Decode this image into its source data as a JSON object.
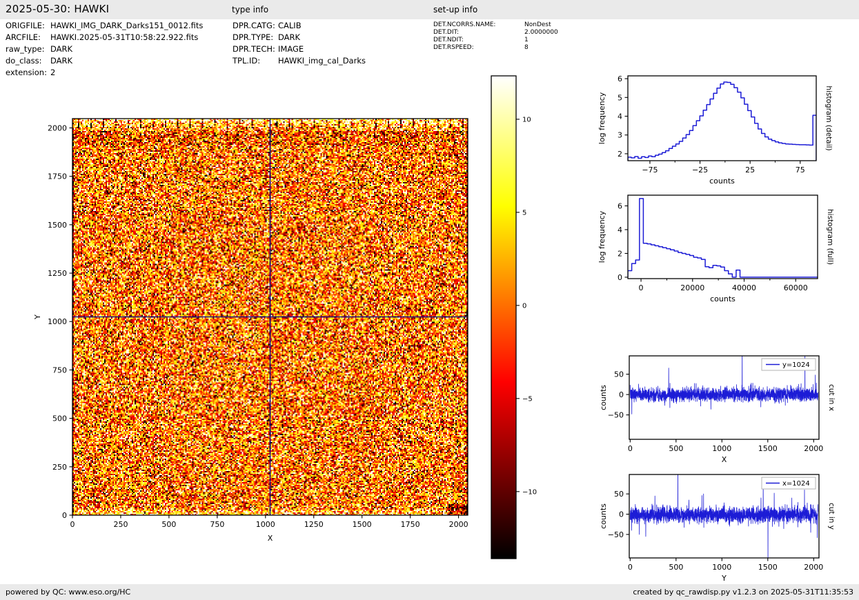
{
  "header": {
    "title": "2025-05-30: HAWKI",
    "type_info_heading": "type info",
    "setup_info_heading": "set-up info"
  },
  "file_info": [
    {
      "label": "ORIGFILE:",
      "value": "HAWKI_IMG_DARK_Darks151_0012.fits"
    },
    {
      "label": "ARCFILE:",
      "value": "HAWKI.2025-05-31T10:58:22.922.fits"
    },
    {
      "label": "raw_type:",
      "value": "DARK"
    },
    {
      "label": "do_class:",
      "value": "DARK"
    },
    {
      "label": "extension:",
      "value": "2"
    }
  ],
  "type_info": [
    {
      "label": "DPR.CATG:",
      "value": "CALIB"
    },
    {
      "label": "DPR.TYPE:",
      "value": "DARK"
    },
    {
      "label": "DPR.TECH:",
      "value": "IMAGE"
    },
    {
      "label": "TPL.ID:",
      "value": "HAWKI_img_cal_Darks"
    }
  ],
  "setup_info": [
    {
      "label": "DET.NCORRS.NAME:",
      "value": "NonDest"
    },
    {
      "label": "DET.DIT:",
      "value": "2.0000000"
    },
    {
      "label": "DET.NDIT:",
      "value": "1"
    },
    {
      "label": "DET.RSPEED:",
      "value": "8"
    }
  ],
  "footer": {
    "left": "powered by QC: www.eso.org/HC",
    "right": "created by qc_rawdisp.py v1.2.3 on 2025-05-31T11:35:53"
  },
  "colors": {
    "line_blue": "#1c1cd6",
    "cut_marker": "#00008b",
    "bar_bg": "#eaeaea",
    "axis": "#000000",
    "legend_border": "#b3b3b3"
  },
  "chart_data": [
    {
      "id": "main_image",
      "type": "heatmap",
      "xlabel": "X",
      "ylabel": "Y",
      "xlim": [
        0,
        2048
      ],
      "ylim": [
        0,
        2048
      ],
      "xticks": [
        [
          0,
          "0"
        ],
        [
          250,
          "250"
        ],
        [
          500,
          "500"
        ],
        [
          750,
          "750"
        ],
        [
          1000,
          "1000"
        ],
        [
          1250,
          "1250"
        ],
        [
          1500,
          "1500"
        ],
        [
          1750,
          "1750"
        ],
        [
          2000,
          "2000"
        ]
      ],
      "yticks": [
        [
          0,
          "0"
        ],
        [
          250,
          "250"
        ],
        [
          500,
          "500"
        ],
        [
          750,
          "750"
        ],
        [
          1000,
          "1000"
        ],
        [
          1250,
          "1250"
        ],
        [
          1500,
          "1500"
        ],
        [
          1750,
          "1750"
        ],
        [
          2000,
          "2000"
        ]
      ],
      "colormap": "hot",
      "value_range": [
        -13.6,
        12.33
      ],
      "colorbar_ticks": [
        [
          10,
          "10"
        ],
        [
          5,
          "5"
        ],
        [
          0,
          "0"
        ],
        [
          -5,
          "−5"
        ],
        [
          -10,
          "−10"
        ]
      ],
      "noise": {
        "mean": 0.5,
        "sigma": 7,
        "seed": 101
      },
      "features": {
        "cut_line_x": 1024,
        "cut_line_y": 1024,
        "comb_marks": 32,
        "top_bright_band": "saturated bright rows at top edge with 32 dark channel tick marks",
        "bottom_bright_rows": "slightly elevated counts along bottom edge",
        "quadrant_seam_x": 1024
      }
    },
    {
      "id": "histogram_detail",
      "type": "step",
      "right_label": "histogram (detail)",
      "xlabel": "counts",
      "ylabel": "log frequency",
      "xlim": [
        -97,
        91
      ],
      "ylim": [
        1.63,
        6.15
      ],
      "xticks": [
        [
          -75,
          "−75"
        ],
        [
          -25,
          "−25"
        ],
        [
          25,
          "25"
        ],
        [
          75,
          "75"
        ]
      ],
      "xticks_minor": [
        -50,
        0,
        50
      ],
      "yticks": [
        [
          2,
          "2"
        ],
        [
          3,
          "3"
        ],
        [
          4,
          "4"
        ],
        [
          5,
          "5"
        ],
        [
          6,
          "6"
        ]
      ],
      "series": {
        "kind": "step",
        "x0": -97,
        "dx": 3.42,
        "values": [
          1.82,
          1.78,
          1.85,
          1.76,
          1.84,
          1.8,
          1.88,
          1.84,
          1.92,
          1.98,
          2.06,
          2.16,
          2.28,
          2.4,
          2.52,
          2.66,
          2.84,
          3.02,
          3.24,
          3.5,
          3.76,
          4.02,
          4.32,
          4.62,
          4.92,
          5.22,
          5.5,
          5.72,
          5.82,
          5.8,
          5.7,
          5.52,
          5.28,
          4.98,
          4.64,
          4.3,
          3.96,
          3.62,
          3.32,
          3.08,
          2.9,
          2.78,
          2.7,
          2.63,
          2.58,
          2.55,
          2.52,
          2.51,
          2.5,
          2.49,
          2.48,
          2.48,
          2.47,
          2.46,
          4.05
        ]
      }
    },
    {
      "id": "histogram_full",
      "type": "step",
      "right_label": "histogram (full)",
      "xlabel": "counts",
      "ylabel": "log frequency",
      "xlim": [
        -5100,
        68500
      ],
      "ylim": [
        -0.12,
        6.9
      ],
      "xticks": [
        [
          0,
          "0"
        ],
        [
          20000,
          "20000"
        ],
        [
          40000,
          "40000"
        ],
        [
          60000,
          "60000"
        ]
      ],
      "xticks_minor": [
        10000,
        30000,
        50000
      ],
      "yticks": [
        [
          0,
          "0"
        ],
        [
          2,
          "2"
        ],
        [
          4,
          "4"
        ],
        [
          6,
          "6"
        ]
      ],
      "series": {
        "kind": "step",
        "x0": -5100,
        "dx": 1500,
        "values": [
          0.55,
          1.15,
          1.45,
          6.62,
          2.85,
          2.8,
          2.72,
          2.64,
          2.56,
          2.48,
          2.4,
          2.3,
          2.2,
          2.08,
          2.0,
          1.92,
          1.82,
          1.68,
          1.62,
          1.5,
          0.88,
          0.8,
          1.0,
          0.95,
          0.85,
          0.55,
          0.28,
          0,
          0.6,
          0,
          0
        ]
      }
    },
    {
      "id": "cut_x",
      "type": "line",
      "right_label": "cut in x",
      "legend": "y=1024",
      "xlabel": "X",
      "ylabel": "counts",
      "xlim": [
        -10,
        2058
      ],
      "ylim": [
        -110,
        95
      ],
      "xticks": [
        [
          0,
          "0"
        ],
        [
          500,
          "500"
        ],
        [
          1000,
          "1000"
        ],
        [
          1500,
          "1500"
        ],
        [
          2000,
          "2000"
        ]
      ],
      "yticks": [
        [
          50,
          "50"
        ],
        [
          0,
          "0"
        ],
        [
          -50,
          "−50"
        ]
      ],
      "series": {
        "kind": "noise",
        "n": 2048,
        "mean": 0,
        "sigma": 8.5,
        "seed": 7,
        "spikes": [
          [
            18,
            -48
          ],
          [
            420,
            65
          ],
          [
            880,
            -36
          ],
          [
            1221,
            128
          ],
          [
            1320,
            28
          ],
          [
            1905,
            118
          ],
          [
            2018,
            48
          ]
        ]
      }
    },
    {
      "id": "cut_y",
      "type": "line",
      "right_label": "cut in y",
      "legend": "x=1024",
      "xlabel": "Y",
      "ylabel": "counts",
      "xlim": [
        -10,
        2058
      ],
      "ylim": [
        -108,
        98
      ],
      "xticks": [
        [
          0,
          "0"
        ],
        [
          500,
          "500"
        ],
        [
          1000,
          "1000"
        ],
        [
          1500,
          "1500"
        ],
        [
          2000,
          "2000"
        ]
      ],
      "yticks": [
        [
          50,
          "50"
        ],
        [
          0,
          "0"
        ],
        [
          -50,
          "−50"
        ]
      ],
      "series": {
        "kind": "noise",
        "n": 2048,
        "mean": -1.5,
        "sigma": 10,
        "seed": 21,
        "spikes": [
          [
            15,
            -40
          ],
          [
            100,
            -50
          ],
          [
            170,
            -55
          ],
          [
            270,
            45
          ],
          [
            520,
            135
          ],
          [
            640,
            35
          ],
          [
            782,
            46
          ],
          [
            800,
            50
          ],
          [
            1450,
            85
          ],
          [
            1502,
            -135
          ],
          [
            1570,
            52
          ],
          [
            1762,
            40
          ],
          [
            1900,
            60
          ],
          [
            1968,
            -45
          ],
          [
            2040,
            -58
          ]
        ]
      }
    }
  ]
}
